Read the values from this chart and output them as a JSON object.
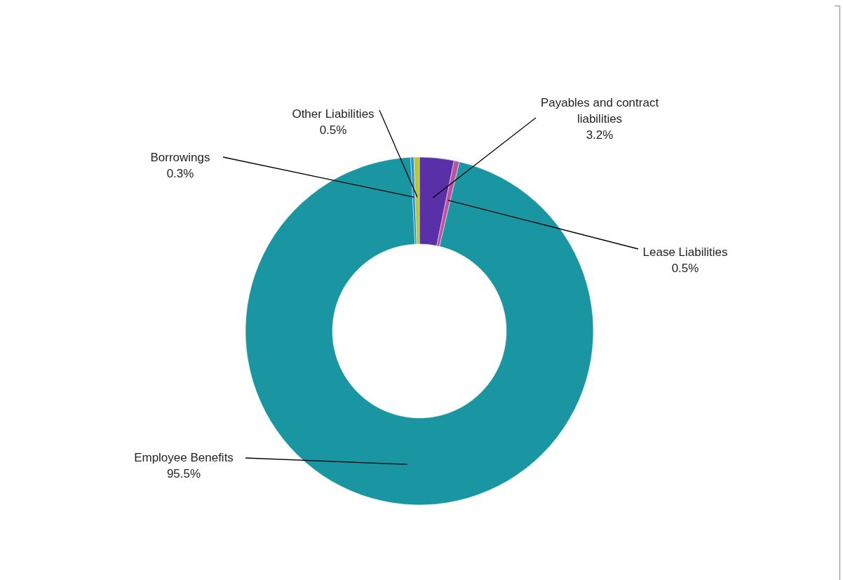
{
  "chart_data": {
    "type": "donut",
    "categories": [
      "Payables and contract liabilities",
      "Lease Liabilities",
      "Employee Benefits",
      "Borrowings",
      "Other Liabilities"
    ],
    "values": [
      3.2,
      0.5,
      95.5,
      0.3,
      0.5
    ],
    "value_labels": [
      "3.2%",
      "0.5%",
      "95.5%",
      "0.3%",
      "0.5%"
    ],
    "colors": [
      "#5a30a8",
      "#c04f9c",
      "#1996a2",
      "#2a8fd6",
      "#b8c82a"
    ]
  }
}
